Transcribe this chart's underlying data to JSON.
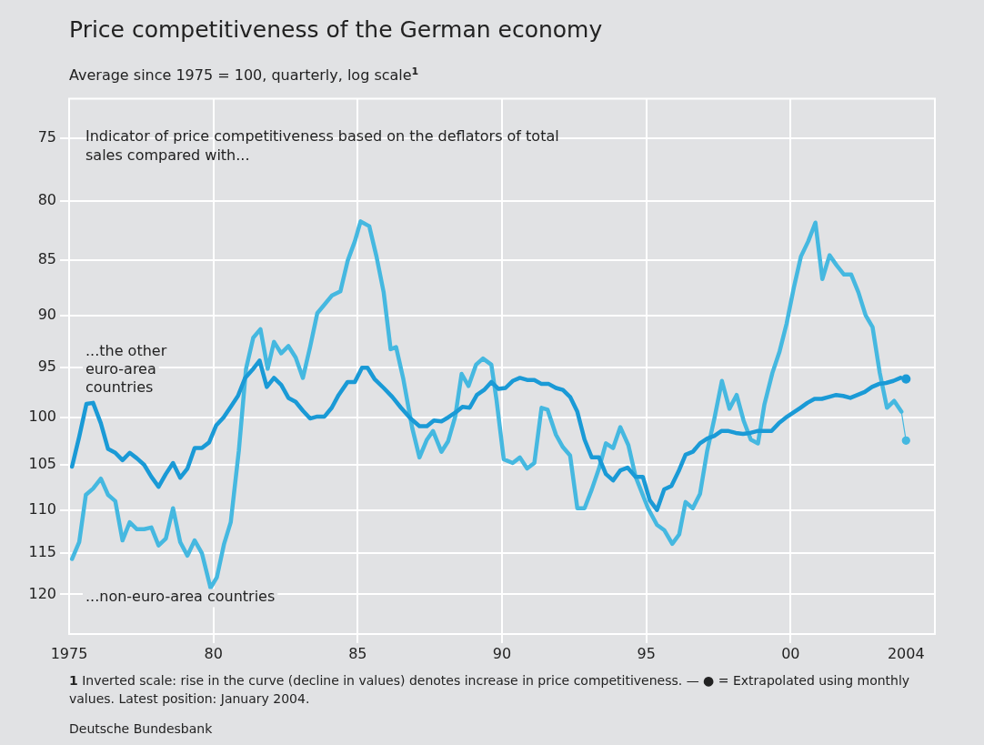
{
  "chart_data": {
    "type": "line",
    "title": "Price competitiveness of the German economy",
    "subtitle": "Average since 1975 = 100, quarterly, log scale$^{1}$",
    "annotations": [
      "Indicator of price competitiveness based on the deflators of total sales compared with...",
      "1 Inverted scale: rise in the curve (decline in values) denotes increase in price competitiveness. — ● = Extrapolated using monthly values. Latest position: January 2004.",
      "Deutsche Bundesbank"
    ],
    "log": "y",
    "ylim": [
      125,
      72
    ],
    "yticks": [
      75,
      80,
      85,
      90,
      95,
      100,
      105,
      110,
      115,
      120
    ],
    "xlim": [
      1975,
      2005
    ],
    "xticks": [
      1975,
      {
        "value": 1980,
        "label": "80"
      },
      {
        "value": 1985,
        "label": "85"
      },
      {
        "value": 1990,
        "label": "90"
      },
      {
        "value": 1995,
        "label": "95"
      },
      {
        "value": 2000,
        "label": "00"
      },
      2004
    ],
    "grid": true,
    "legend": false,
    "marker": "none",
    "line_style": "solid",
    "series": [
      {
        "name": "...the other euro-area countries",
        "color": "#1a9ad6",
        "x": [
          1975.1,
          1975.35,
          1975.6,
          1975.83,
          1976.1,
          1976.35,
          1976.6,
          1976.85,
          1977.1,
          1977.35,
          1977.6,
          1977.85,
          1978.1,
          1978.35,
          1978.6,
          1978.85,
          1979.1,
          1979.35,
          1979.6,
          1979.85,
          1980.1,
          1980.35,
          1980.6,
          1980.85,
          1981.1,
          1981.35,
          1981.6,
          1981.85,
          1982.1,
          1982.35,
          1982.6,
          1982.85,
          1983.1,
          1983.35,
          1983.6,
          1983.85,
          1984.1,
          1984.34,
          1984.65,
          1984.9,
          1985.15,
          1985.34,
          1985.58,
          1985.9,
          1986.2,
          1986.5,
          1986.83,
          1987.14,
          1987.4,
          1987.64,
          1987.9,
          1988.13,
          1988.38,
          1988.63,
          1988.88,
          1989.13,
          1989.38,
          1989.63,
          1989.88,
          1990.12,
          1990.37,
          1990.62,
          1990.87,
          1991.12,
          1991.37,
          1991.62,
          1991.87,
          1992.11,
          1992.36,
          1992.61,
          1992.86,
          1993.11,
          1993.36,
          1993.6,
          1993.85,
          1994.1,
          1994.35,
          1994.63,
          1994.88,
          1995.12,
          1995.37,
          1995.62,
          1995.87,
          1996.12,
          1996.36,
          1996.61,
          1996.86,
          1997.11,
          1997.36,
          1997.6,
          1997.85,
          1998.1,
          1998.35,
          1998.6,
          1998.85,
          1999.1,
          1999.34,
          1999.59,
          1999.84,
          2000.09,
          2000.34,
          2000.58,
          2000.83,
          2001.08,
          2001.33,
          2001.58,
          2001.82,
          2002.07,
          2002.32,
          2002.57,
          2002.82,
          2003.06,
          2003.31,
          2003.56,
          2003.81
        ],
        "values": [
          105.2,
          102,
          98.6,
          98.5,
          100.6,
          103.3,
          103.7,
          104.5,
          103.7,
          104.3,
          105,
          106.3,
          107.4,
          106,
          104.8,
          106.4,
          105.4,
          103.2,
          103.2,
          102.6,
          100.8,
          100,
          98.9,
          97.8,
          96,
          95.2,
          94.3,
          96.9,
          96,
          96.7,
          98,
          98.4,
          99.3,
          100.1,
          99.9,
          99.9,
          99,
          97.7,
          96.4,
          96.4,
          95,
          95,
          96.1,
          97,
          97.9,
          99,
          100.1,
          100.9,
          100.9,
          100.3,
          100.4,
          100,
          99.5,
          98.9,
          99,
          97.7,
          97.2,
          96.4,
          97.1,
          97,
          96.3,
          96,
          96.2,
          96.2,
          96.6,
          96.6,
          97,
          97.2,
          97.9,
          99.4,
          102.3,
          104.2,
          104.2,
          106,
          106.7,
          105.6,
          105.3,
          106.3,
          106.3,
          108.9,
          110,
          107.7,
          107.3,
          105.7,
          103.9,
          103.6,
          102.7,
          102.2,
          101.9,
          101.4,
          101.4,
          101.6,
          101.7,
          101.6,
          101.4,
          101.4,
          101.4,
          100.6,
          100,
          99.5,
          99,
          98.5,
          98.1,
          98.1,
          97.9,
          97.7,
          97.8,
          98,
          97.7,
          97.4,
          96.9,
          96.6,
          96.5,
          96.3,
          96
        ]
      },
      {
        "type": "scatter",
        "color": "#1a9ad6",
        "marker": "circle",
        "x": [
          2004
        ],
        "values": [
          96.1
        ]
      },
      {
        "name": "...non-euro-area countries",
        "color": "#45b8e0",
        "x": [
          1975.1,
          1975.35,
          1975.58,
          1975.83,
          1976.1,
          1976.35,
          1976.6,
          1976.85,
          1977.1,
          1977.35,
          1977.6,
          1977.85,
          1978.1,
          1978.35,
          1978.6,
          1978.85,
          1979.1,
          1979.35,
          1979.6,
          1979.9,
          1980.12,
          1980.37,
          1980.6,
          1980.88,
          1981.13,
          1981.38,
          1981.63,
          1981.88,
          1982.1,
          1982.35,
          1982.6,
          1982.85,
          1983.1,
          1983.35,
          1983.6,
          1983.85,
          1984.1,
          1984.4,
          1984.65,
          1984.9,
          1985.1,
          1985.4,
          1985.65,
          1985.9,
          1986.14,
          1986.33,
          1986.58,
          1986.89,
          1987.14,
          1987.4,
          1987.61,
          1987.9,
          1988.13,
          1988.38,
          1988.6,
          1988.84,
          1989.1,
          1989.34,
          1989.63,
          1989.81,
          1990.06,
          1990.37,
          1990.62,
          1990.87,
          1991.12,
          1991.37,
          1991.58,
          1991.87,
          1992.11,
          1992.36,
          1992.61,
          1992.86,
          1993.11,
          1993.36,
          1993.6,
          1993.85,
          1994.1,
          1994.38,
          1994.63,
          1995.06,
          1995.37,
          1995.62,
          1995.9,
          1996.14,
          1996.36,
          1996.61,
          1996.86,
          1997.11,
          1997.36,
          1997.62,
          1997.88,
          1998.13,
          1998.37,
          1998.62,
          1998.87,
          1999.09,
          1999.37,
          1999.62,
          1999.86,
          2000.11,
          2000.36,
          2000.61,
          2000.86,
          2001.1,
          2001.35,
          2001.6,
          2001.85,
          2002.1,
          2002.35,
          2002.6,
          2002.84,
          2003.09,
          2003.34,
          2003.59,
          2003.84
        ],
        "values": [
          115.7,
          113.7,
          108.3,
          107.6,
          106.5,
          108.3,
          109,
          113.5,
          111.4,
          112.2,
          112.2,
          112,
          114.1,
          113.3,
          109.8,
          113.7,
          115.3,
          113.5,
          115,
          119.2,
          117.9,
          113.9,
          111.4,
          103.5,
          95.1,
          92.1,
          91.3,
          95.1,
          92.5,
          93.6,
          92.9,
          94,
          96,
          93,
          89.8,
          89,
          88.2,
          87.8,
          85.1,
          83.4,
          81.7,
          82.1,
          84.7,
          87.9,
          93.2,
          93,
          96.1,
          101.1,
          104.2,
          102.3,
          101.4,
          103.6,
          102.5,
          99.9,
          95.6,
          96.8,
          94.7,
          94.1,
          94.7,
          98.2,
          104.4,
          104.8,
          104.2,
          105.4,
          104.8,
          99,
          99.2,
          101.8,
          103.1,
          104,
          109.8,
          109.8,
          107.7,
          105.4,
          102.7,
          103.2,
          101,
          102.9,
          106.3,
          109.8,
          111.7,
          112.3,
          113.9,
          112.8,
          109.1,
          109.8,
          108.2,
          103.5,
          100.1,
          96.3,
          99.1,
          97.7,
          100.3,
          102.3,
          102.7,
          98.7,
          95.5,
          93.4,
          90.8,
          87.5,
          84.7,
          83.4,
          81.8,
          86.7,
          84.6,
          85.5,
          86.3,
          86.3,
          87.9,
          90,
          91.1,
          95.5,
          99,
          98.3,
          99.4
        ]
      },
      {
        "color": "#45b8e0",
        "marker": "circle",
        "x": [
          2003.84,
          2004
        ],
        "values": [
          99.4,
          102.4
        ]
      }
    ]
  }
}
